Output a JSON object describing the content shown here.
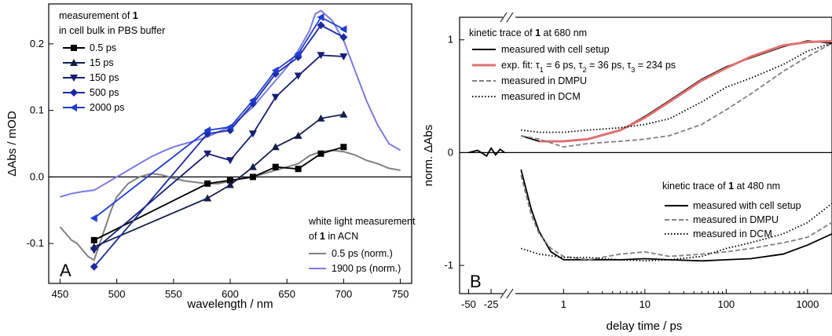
{
  "chart_data": [
    {
      "type": "line",
      "panel_label": "A",
      "xlabel": "wavelength / nm",
      "ylabel": "ΔAbs / mOD",
      "xlim": [
        440,
        760
      ],
      "ylim": [
        -0.16,
        0.26
      ],
      "xticks": [
        450,
        500,
        550,
        600,
        650,
        700,
        750
      ],
      "xtick_labels": [
        "450",
        "500",
        "550",
        "600",
        "650",
        "700",
        "750"
      ],
      "yticks": [
        -0.1,
        0.0,
        0.1,
        0.2
      ],
      "ytick_labels": [
        "-0.1",
        "0.0",
        "0.1",
        "0.2"
      ],
      "legend_title": [
        "measurement of 1",
        "in cell bulk in PBS buffer"
      ],
      "legend2_title": [
        "white light measurement",
        "of 1 in ACN"
      ],
      "series": [
        {
          "name": "0.5 ps",
          "color": "#000000",
          "marker": "square",
          "x": [
            480,
            580,
            600,
            620,
            640,
            660,
            680,
            700
          ],
          "y": [
            -0.095,
            -0.01,
            -0.005,
            0.0,
            0.015,
            0.012,
            0.035,
            0.045
          ]
        },
        {
          "name": "15 ps",
          "color": "#141e4a",
          "marker": "triangle-up",
          "x": [
            480,
            580,
            600,
            620,
            640,
            660,
            680,
            700
          ],
          "y": [
            -0.105,
            -0.032,
            -0.012,
            0.015,
            0.045,
            0.062,
            0.088,
            0.094
          ]
        },
        {
          "name": "150 ps",
          "color": "#171e73",
          "marker": "triangle-down",
          "x": [
            480,
            580,
            600,
            620,
            640,
            660,
            680,
            700
          ],
          "y": [
            -0.11,
            0.035,
            0.025,
            0.065,
            0.12,
            0.152,
            0.183,
            0.181
          ]
        },
        {
          "name": "500 ps",
          "color": "#1a2aa0",
          "marker": "diamond",
          "x": [
            480,
            580,
            600,
            620,
            640,
            660,
            680,
            700
          ],
          "y": [
            -0.135,
            0.065,
            0.07,
            0.11,
            0.155,
            0.18,
            0.228,
            0.21
          ]
        },
        {
          "name": "2000 ps",
          "color": "#1f3fd0",
          "marker": "triangle-left",
          "x": [
            480,
            580,
            600,
            620,
            640,
            660,
            680,
            700
          ],
          "y": [
            -0.062,
            0.07,
            0.075,
            0.115,
            0.16,
            0.185,
            0.24,
            0.222
          ]
        },
        {
          "name": "0.5 ps (norm.)",
          "color": "#808080",
          "marker": "none",
          "width": 2,
          "x": [
            450,
            455,
            460,
            465,
            470,
            475,
            480,
            485,
            490,
            495,
            500,
            510,
            520,
            530,
            540,
            550,
            560,
            570,
            580,
            590,
            600,
            610,
            620,
            630,
            640,
            650,
            660,
            670,
            680,
            690,
            700,
            710,
            720,
            730,
            740,
            750
          ],
          "y": [
            -0.075,
            -0.085,
            -0.095,
            -0.1,
            -0.11,
            -0.12,
            -0.125,
            -0.1,
            -0.075,
            -0.05,
            -0.03,
            -0.01,
            0.0,
            0.005,
            0.003,
            -0.002,
            -0.006,
            -0.008,
            -0.01,
            -0.01,
            -0.006,
            -0.003,
            0.0,
            0.005,
            0.01,
            0.015,
            0.02,
            0.032,
            0.038,
            0.04,
            0.038,
            0.033,
            0.025,
            0.02,
            0.013,
            0.01
          ]
        },
        {
          "name": "1900 ps (norm.)",
          "color": "#7b7be6",
          "marker": "none",
          "width": 2,
          "x": [
            450,
            460,
            470,
            480,
            490,
            500,
            510,
            520,
            530,
            540,
            550,
            560,
            570,
            580,
            590,
            600,
            610,
            620,
            630,
            640,
            650,
            660,
            670,
            675,
            680,
            690,
            700,
            710,
            720,
            730,
            740,
            750
          ],
          "y": [
            -0.03,
            -0.025,
            -0.022,
            -0.02,
            -0.01,
            0.0,
            0.01,
            0.02,
            0.03,
            0.038,
            0.045,
            0.05,
            0.055,
            0.06,
            0.068,
            0.075,
            0.09,
            0.105,
            0.125,
            0.145,
            0.165,
            0.19,
            0.22,
            0.245,
            0.25,
            0.235,
            0.205,
            0.16,
            0.115,
            0.078,
            0.05,
            0.04
          ]
        }
      ],
      "note": "horizontal zero line"
    },
    {
      "type": "line",
      "panel_label": "B",
      "xlabel": "delay time / ps",
      "ylabel": "norm. ΔAbs",
      "xscale": "linear-then-log (axis break)",
      "ylim": [
        -1.25,
        1.2
      ],
      "xticks": [
        -50,
        -25,
        1,
        10,
        100,
        1000
      ],
      "xtick_labels": [
        "-50",
        "-25",
        "1",
        "10",
        "100",
        "1000"
      ],
      "yticks": [
        -1,
        0,
        1
      ],
      "ytick_labels": [
        "-1",
        "0",
        "1"
      ],
      "legend_680": {
        "title": [
          "kinetic trace of ",
          "1",
          " at 680 nm"
        ],
        "entries": [
          "measured with cell setup",
          "exp. fit: τ",
          "1",
          " = 6 ps, τ",
          "2",
          " = 36 ps, τ",
          "3",
          " = 234 ps",
          "measured in DMPU",
          "measured in DCM"
        ]
      },
      "legend_480": {
        "title": [
          "kinetic trace of ",
          "1",
          " at 480 nm"
        ],
        "entries": [
          "measured with cell setup",
          "measured in DMPU",
          "measured in DCM"
        ]
      },
      "series": [
        {
          "name": "680 nm measured with cell setup",
          "color": "#000000",
          "style": "solid",
          "x": [
            0.3,
            0.5,
            1,
            2,
            5,
            10,
            20,
            50,
            100,
            200,
            500,
            1000,
            2000
          ],
          "y": [
            0.15,
            0.1,
            0.1,
            0.12,
            0.2,
            0.32,
            0.46,
            0.65,
            0.76,
            0.84,
            0.94,
            0.99,
            0.97
          ]
        },
        {
          "name": "exp. fit",
          "color": "#e07070",
          "style": "solid",
          "x": [
            0.5,
            1,
            2,
            5,
            10,
            20,
            50,
            100,
            200,
            500,
            1000,
            2000
          ],
          "y": [
            0.1,
            0.1,
            0.12,
            0.2,
            0.31,
            0.45,
            0.64,
            0.75,
            0.85,
            0.95,
            0.98,
            0.99
          ]
        },
        {
          "name": "680 nm measured in DMPU",
          "color": "#808080",
          "style": "dashed",
          "x": [
            0.3,
            0.5,
            1,
            2,
            5,
            10,
            20,
            50,
            100,
            200,
            500,
            1000,
            2000
          ],
          "y": [
            0.15,
            0.12,
            0.05,
            0.08,
            0.1,
            0.12,
            0.15,
            0.25,
            0.38,
            0.52,
            0.72,
            0.85,
            0.97
          ]
        },
        {
          "name": "680 nm measured in DCM",
          "color": "#000000",
          "style": "dotted",
          "x": [
            0.3,
            0.5,
            1,
            2,
            5,
            10,
            20,
            50,
            100,
            200,
            500,
            1000,
            2000
          ],
          "y": [
            0.2,
            0.18,
            0.18,
            0.2,
            0.22,
            0.25,
            0.3,
            0.45,
            0.58,
            0.66,
            0.78,
            0.9,
            0.97
          ]
        },
        {
          "name": "480 nm measured with cell setup",
          "color": "#000000",
          "style": "solid",
          "x": [
            0.3,
            0.4,
            0.5,
            0.7,
            1,
            2,
            5,
            10,
            20,
            50,
            100,
            200,
            500,
            1000,
            2000
          ],
          "y": [
            -0.15,
            -0.5,
            -0.7,
            -0.88,
            -0.95,
            -0.95,
            -0.95,
            -0.94,
            -0.95,
            -0.96,
            -0.95,
            -0.94,
            -0.9,
            -0.82,
            -0.72
          ]
        },
        {
          "name": "480 nm measured in DMPU",
          "color": "#808080",
          "style": "dashed",
          "x": [
            0.3,
            0.4,
            0.5,
            0.7,
            1,
            2,
            5,
            10,
            20,
            50,
            100,
            200,
            500,
            1000,
            2000
          ],
          "y": [
            -0.2,
            -0.55,
            -0.72,
            -0.85,
            -0.92,
            -0.95,
            -0.9,
            -0.88,
            -0.92,
            -0.9,
            -0.88,
            -0.85,
            -0.8,
            -0.75,
            -0.62
          ]
        },
        {
          "name": "480 nm measured in DCM",
          "color": "#000000",
          "style": "dotted",
          "x": [
            0.3,
            0.5,
            1,
            2,
            5,
            10,
            20,
            50,
            100,
            200,
            500,
            1000,
            2000
          ],
          "y": [
            -0.85,
            -0.9,
            -0.93,
            -0.93,
            -0.95,
            -0.96,
            -0.95,
            -0.92,
            -0.85,
            -0.8,
            -0.72,
            -0.62,
            -0.45
          ]
        },
        {
          "name": "pre-zero baseline",
          "color": "#000000",
          "style": "solid",
          "x": [
            -50,
            -40,
            -30,
            -25,
            -20,
            -15,
            -10
          ],
          "y": [
            0.0,
            0.02,
            -0.03,
            0.04,
            -0.02,
            0.03,
            0.0
          ]
        }
      ]
    }
  ]
}
